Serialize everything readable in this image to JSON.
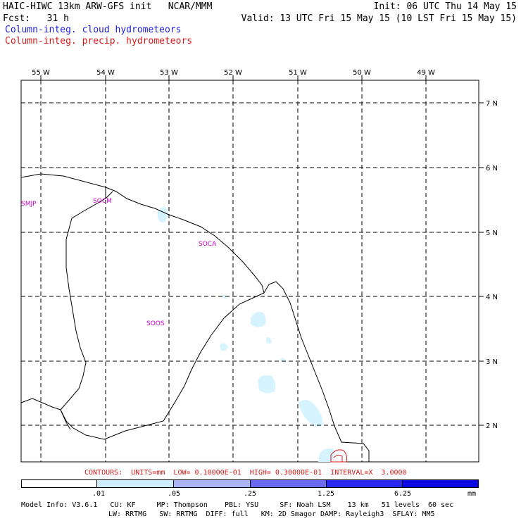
{
  "header": {
    "line1_left": "HAIC-HIWC 13km ARW-GFS init   NCAR/MMM",
    "line1_right": "Init: 06 UTC Thu 14 May 15",
    "line2_left": "Fcst:   31 h",
    "line2_right": "Valid: 13 UTC Fri 15 May 15 (10 LST Fri 15 May 15)",
    "legend_cloud": "Column-integ. cloud hydrometeors",
    "legend_precip": "Column-integ. precip. hydrometeors"
  },
  "map": {
    "lon_labels": [
      "55 W",
      "54 W",
      "53 W",
      "52 W",
      "51 W",
      "50 W",
      "49 W"
    ],
    "lat_labels": [
      "7 N",
      "6 N",
      "5 N",
      "4 N",
      "3 N",
      "2 N"
    ],
    "stations": [
      "SMJP",
      "SOCM",
      "SOCA",
      "SOOS"
    ]
  },
  "contours_line": "CONTOURS:  UNITS=mm  LOW= 0.10000E-01  HIGH= 0.30000E-01  INTERVAL=X  3.0000",
  "colorbar": {
    "ticks": [
      ".01",
      ".05",
      ".25",
      "1.25",
      "6.25"
    ],
    "unit": "mm",
    "colors": [
      "#ffffff",
      "#cceeff",
      "#aab4f4",
      "#6b6bf0",
      "#2a2aee",
      "#0a0ae0"
    ]
  },
  "model_info": {
    "line1": "Model Info: V3.6.1   CU: KF     MP: Thompson    PBL: YSU     SF: Noah LSM    13 km   51 levels  60 sec",
    "line2": "LW: RRTMG   SW: RRTMG  DIFF: full   KM: 2D Smagor DAMP: Rayleigh3  SFLAY: MM5"
  }
}
